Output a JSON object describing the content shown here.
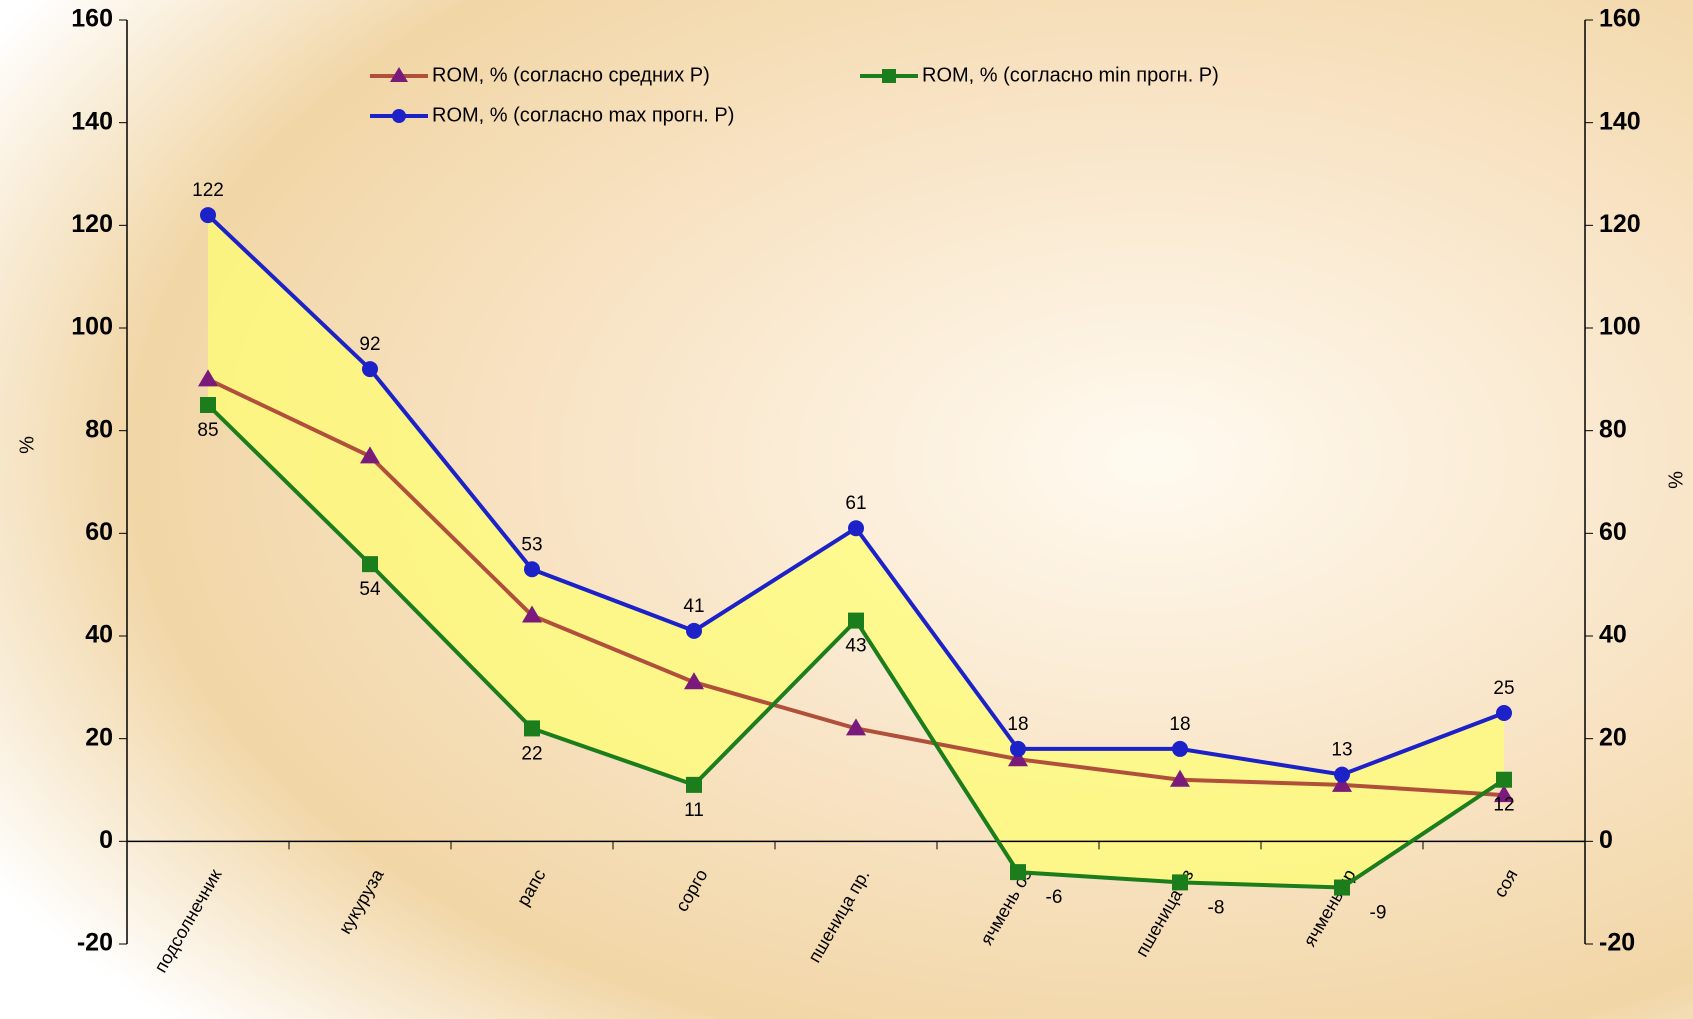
{
  "chart_data": {
    "type": "line",
    "categories": [
      "подсолнечник",
      "кукуруза",
      "рапс",
      "сорго",
      "пшеница пр.",
      "ячмень оз",
      "пшеница оз",
      "ячмень яр",
      "соя"
    ],
    "series": [
      {
        "name": "ROM, % (согласно средних Р)",
        "color": "#7a1a7a",
        "line_color": "#b0503a",
        "values": [
          90,
          75,
          44,
          31,
          22,
          16,
          12,
          11,
          9
        ]
      },
      {
        "name": "ROM, % (согласно min прогн. Р)",
        "color": "#1b7d1b",
        "values": [
          85,
          54,
          22,
          11,
          43,
          -6,
          -8,
          -9,
          12
        ],
        "labels": true
      },
      {
        "name": "ROM, % (согласно max прогн. Р)",
        "color": "#1c22c8",
        "values": [
          122,
          92,
          53,
          41,
          61,
          18,
          18,
          13,
          25
        ],
        "labels": true
      }
    ],
    "band_color": "#ffff70",
    "y_label": "%",
    "y2_label": "%",
    "ylim": [
      -20,
      160
    ],
    "yticks": [
      -20,
      0,
      20,
      40,
      60,
      80,
      100,
      120,
      140,
      160
    ],
    "y2lim": [
      -20,
      160
    ],
    "y2ticks": [
      -20,
      0,
      20,
      40,
      60,
      80,
      100,
      120,
      140,
      160
    ],
    "grid": false
  }
}
